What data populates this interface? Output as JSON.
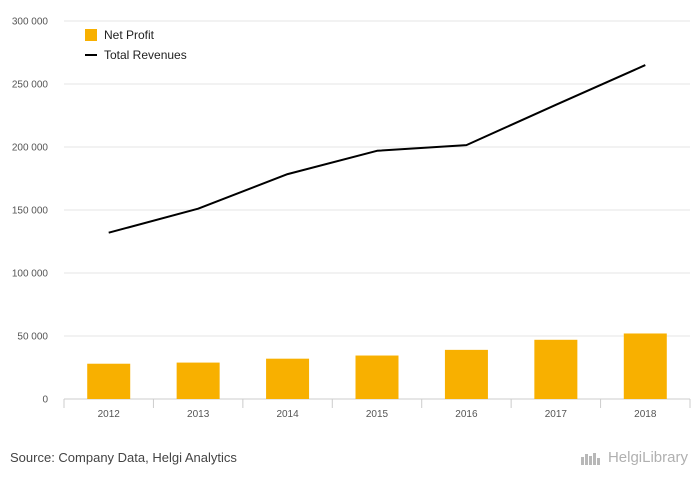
{
  "chart_data": {
    "type": "bar",
    "categories": [
      "2012",
      "2013",
      "2014",
      "2015",
      "2016",
      "2017",
      "2018"
    ],
    "series": [
      {
        "name": "Net Profit",
        "type": "bar",
        "color": "#f8b000",
        "values": [
          28000,
          28900,
          32000,
          34500,
          39000,
          47000,
          52000
        ]
      },
      {
        "name": "Total Revenues",
        "type": "line",
        "color": "#000000",
        "values": [
          132000,
          151000,
          178500,
          197000,
          201500,
          233500,
          265000
        ]
      }
    ],
    "ylim": [
      0,
      300000
    ],
    "yticks": [
      0,
      50000,
      100000,
      150000,
      200000,
      250000,
      300000
    ],
    "ytick_labels": [
      "0",
      "50 000",
      "100 000",
      "150 000",
      "200 000",
      "250 000",
      "300 000"
    ],
    "grid": true,
    "legend_position": "top-left"
  },
  "footer": {
    "source": "Source: Company Data, Helgi Analytics",
    "logo_text": "HelgiLibrary"
  }
}
